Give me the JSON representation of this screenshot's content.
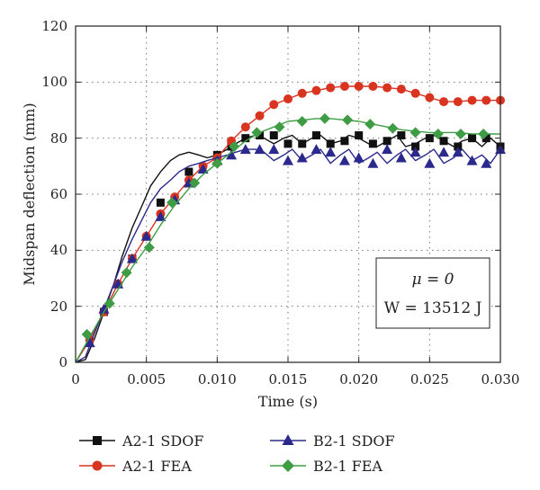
{
  "chart_data": {
    "type": "line",
    "xlabel": "Time (s)",
    "ylabel": "Midspan deflection (mm)",
    "xlim": [
      0,
      0.03
    ],
    "ylim": [
      0,
      120
    ],
    "xticks": [
      "0",
      "0.005",
      "0.010",
      "0.015",
      "0.020",
      "0.025",
      "0.030"
    ],
    "yticks": [
      "0",
      "20",
      "40",
      "60",
      "80",
      "100",
      "120"
    ],
    "grid": "dotted",
    "legend_position": "bottom",
    "annotation": {
      "line1": "μ = 0",
      "line2": "W = 13512 J"
    },
    "series": [
      {
        "name": "A2-1 SDOF",
        "color": "#111111",
        "marker": "square",
        "x": [
          0,
          0.0007,
          0.0013,
          0.002,
          0.0027,
          0.0033,
          0.004,
          0.0047,
          0.0053,
          0.006,
          0.0067,
          0.0073,
          0.008,
          0.0087,
          0.0093,
          0.01,
          0.0107,
          0.0113,
          0.012,
          0.0127,
          0.0133,
          0.014,
          0.0147,
          0.0153,
          0.016,
          0.0167,
          0.0173,
          0.018,
          0.0187,
          0.0193,
          0.02,
          0.0207,
          0.0213,
          0.022,
          0.0227,
          0.0233,
          0.024,
          0.0247,
          0.0253,
          0.026,
          0.0267,
          0.0273,
          0.028,
          0.0287,
          0.0293,
          0.03
        ],
        "y": [
          0,
          1,
          8,
          18,
          28,
          38,
          48,
          56,
          63,
          68,
          72,
          74,
          75,
          74,
          73,
          74,
          76,
          78,
          80,
          81,
          80,
          78,
          80,
          81,
          78,
          80,
          81,
          78,
          79,
          81,
          80,
          78,
          77,
          79,
          81,
          77,
          78,
          80,
          81,
          79,
          77,
          79,
          80,
          77,
          80,
          77
        ],
        "markers_x": [
          0.002,
          0.004,
          0.006,
          0.008,
          0.01,
          0.011,
          0.012,
          0.013,
          0.014,
          0.015,
          0.016,
          0.017,
          0.018,
          0.019,
          0.02,
          0.021,
          0.022,
          0.023,
          0.024,
          0.025,
          0.026,
          0.027,
          0.028,
          0.029,
          0.03
        ],
        "markers_y": [
          18,
          37,
          57,
          68,
          74,
          77,
          80,
          81,
          81,
          78,
          78,
          81,
          78,
          79,
          81,
          78,
          79,
          81,
          77,
          80,
          79,
          77,
          80,
          80,
          77
        ]
      },
      {
        "name": "A2-1 FEA",
        "color": "#d9341f",
        "marker": "circle",
        "x": [
          0,
          0.001,
          0.002,
          0.003,
          0.004,
          0.005,
          0.006,
          0.007,
          0.008,
          0.009,
          0.01,
          0.011,
          0.012,
          0.013,
          0.014,
          0.015,
          0.016,
          0.017,
          0.018,
          0.019,
          0.02,
          0.021,
          0.022,
          0.023,
          0.024,
          0.025,
          0.026,
          0.027,
          0.028,
          0.029,
          0.03
        ],
        "y": [
          0,
          8,
          18,
          28,
          37,
          45,
          53,
          59,
          65,
          70,
          73,
          79,
          84,
          88,
          92,
          94,
          96,
          97,
          98,
          98.5,
          98.5,
          98.5,
          98,
          97.5,
          96,
          94.5,
          93,
          93,
          93.5,
          93.5,
          93.5
        ]
      },
      {
        "name": "B2-1 SDOF",
        "color": "#2b2a8c",
        "marker": "triangle",
        "x": [
          0,
          0.0007,
          0.0013,
          0.002,
          0.0027,
          0.0033,
          0.004,
          0.0047,
          0.0053,
          0.006,
          0.0067,
          0.0073,
          0.008,
          0.0087,
          0.0093,
          0.01,
          0.0107,
          0.0113,
          0.012,
          0.0127,
          0.0133,
          0.014,
          0.0147,
          0.0153,
          0.016,
          0.0167,
          0.0173,
          0.018,
          0.0187,
          0.0193,
          0.02,
          0.0207,
          0.0213,
          0.022,
          0.0227,
          0.0233,
          0.024,
          0.0247,
          0.0253,
          0.026,
          0.0267,
          0.0273,
          0.028,
          0.0287,
          0.0293,
          0.03
        ],
        "y": [
          0,
          2,
          10,
          19,
          28,
          36,
          44,
          51,
          57,
          62,
          65,
          68,
          70,
          71,
          72,
          73,
          74,
          75,
          76,
          76,
          75,
          72,
          74,
          76,
          72,
          74,
          76,
          71,
          74,
          76,
          71,
          73,
          75,
          71,
          74,
          76,
          72,
          74,
          76,
          71,
          73,
          76,
          72,
          74,
          71,
          76
        ],
        "markers_x": [
          0.001,
          0.002,
          0.003,
          0.004,
          0.005,
          0.006,
          0.007,
          0.008,
          0.009,
          0.01,
          0.011,
          0.012,
          0.013,
          0.014,
          0.015,
          0.016,
          0.017,
          0.018,
          0.019,
          0.02,
          0.021,
          0.022,
          0.023,
          0.024,
          0.025,
          0.026,
          0.027,
          0.028,
          0.029,
          0.03
        ],
        "markers_y": [
          7,
          19,
          28,
          37,
          45,
          52,
          58,
          64,
          69,
          72,
          74,
          76,
          76,
          76,
          72,
          73,
          76,
          75,
          72,
          73,
          71,
          76,
          73,
          75,
          71,
          75,
          75,
          72,
          71,
          76
        ]
      },
      {
        "name": "B2-1 FEA",
        "color": "#3e9d44",
        "marker": "diamond",
        "x": [
          0,
          0.001,
          0.002,
          0.003,
          0.004,
          0.005,
          0.006,
          0.007,
          0.008,
          0.009,
          0.01,
          0.011,
          0.012,
          0.013,
          0.014,
          0.015,
          0.016,
          0.017,
          0.018,
          0.019,
          0.02,
          0.021,
          0.022,
          0.023,
          0.024,
          0.025,
          0.026,
          0.027,
          0.028,
          0.029,
          0.03
        ],
        "y": [
          0,
          9,
          18,
          26,
          34,
          41,
          49,
          56,
          62,
          67,
          71,
          75,
          79,
          82,
          84,
          86,
          86.5,
          87,
          87,
          86.5,
          86,
          85,
          84,
          83,
          82.5,
          82,
          82,
          82,
          81.5,
          81.5,
          81.5
        ],
        "markers_x": [
          0.0008,
          0.0024,
          0.0036,
          0.0052,
          0.0068,
          0.0084,
          0.01,
          0.0112,
          0.0128,
          0.0144,
          0.016,
          0.0176,
          0.0192,
          0.0208,
          0.0224,
          0.024,
          0.0256,
          0.0272,
          0.0288,
          0.0304
        ],
        "markers_y": [
          10,
          21,
          32,
          41,
          57,
          64,
          71,
          77,
          82,
          84,
          86,
          87,
          86.5,
          85,
          83.5,
          82,
          81.5,
          81.5,
          81.5,
          81.5
        ]
      }
    ]
  }
}
